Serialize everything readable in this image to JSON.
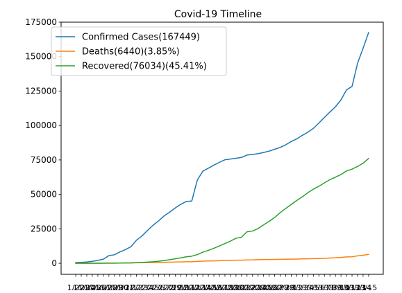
{
  "chart_data": {
    "type": "line",
    "title": "Covid-19 Timeline",
    "xlabel": "",
    "ylabel": "",
    "ylim": [
      -8000,
      175000
    ],
    "yticks": [
      0,
      25000,
      50000,
      75000,
      100000,
      125000,
      150000,
      175000
    ],
    "ytick_labels": [
      "0",
      "25000",
      "50000",
      "75000",
      "100000",
      "125000",
      "150000",
      "175000"
    ],
    "grid": false,
    "legend_position": "upper left",
    "x": [
      "1/22",
      "1/23",
      "1/24",
      "1/25",
      "1/26",
      "1/27",
      "1/28",
      "1/29",
      "1/30",
      "1/31",
      "2/1",
      "2/2",
      "2/3",
      "2/4",
      "2/5",
      "2/6",
      "2/7",
      "2/8",
      "2/9",
      "2/10",
      "2/11",
      "2/12",
      "2/13",
      "2/14",
      "2/15",
      "2/16",
      "2/17",
      "2/18",
      "2/19",
      "2/20",
      "2/21",
      "2/22",
      "2/23",
      "2/24",
      "2/25",
      "2/26",
      "2/27",
      "2/28",
      "2/29",
      "3/1",
      "3/2",
      "3/3",
      "3/4",
      "3/5",
      "3/6",
      "3/7",
      "3/8",
      "3/9",
      "3/10",
      "3/11",
      "3/12",
      "3/13",
      "3/14",
      "3/15"
    ],
    "series": [
      {
        "name": "Confirmed Cases(167449)",
        "color": "#1f77b4",
        "values": [
          555,
          654,
          941,
          1434,
          2118,
          2927,
          5578,
          6166,
          8234,
          9927,
          12038,
          16787,
          19881,
          23892,
          27635,
          30794,
          34391,
          37120,
          40150,
          42762,
          44802,
          45221,
          60368,
          66885,
          69030,
          71224,
          73258,
          75136,
          75639,
          76197,
          76819,
          78572,
          78958,
          79561,
          80406,
          81388,
          82746,
          84112,
          86011,
          88369,
          90306,
          92840,
          95120,
          97886,
          101801,
          105847,
          109821,
          113590,
          118620,
          125875,
          128343,
          145193,
          156099,
          167449
        ]
      },
      {
        "name": "Deaths(6440)(3.85%)",
        "color": "#ff7f0e",
        "values": [
          17,
          18,
          26,
          42,
          56,
          82,
          131,
          133,
          171,
          213,
          259,
          362,
          426,
          492,
          564,
          634,
          719,
          806,
          906,
          1013,
          1113,
          1118,
          1371,
          1523,
          1666,
          1770,
          1868,
          2007,
          2122,
          2247,
          2251,
          2458,
          2469,
          2629,
          2708,
          2770,
          2814,
          2872,
          2941,
          2996,
          3085,
          3160,
          3254,
          3348,
          3460,
          3558,
          3803,
          3996,
          4262,
          4615,
          4720,
          5404,
          5819,
          6440
        ]
      },
      {
        "name": "Recovered(76034)(45.41%)",
        "color": "#2ca02c",
        "values": [
          28,
          30,
          36,
          39,
          52,
          61,
          107,
          126,
          143,
          222,
          284,
          472,
          623,
          852,
          1124,
          1487,
          2011,
          2616,
          3244,
          3946,
          4683,
          5150,
          6295,
          8058,
          9395,
          10865,
          12583,
          14352,
          16121,
          18177,
          18890,
          22886,
          23394,
          25227,
          27905,
          30384,
          33277,
          36711,
          39782,
          42716,
          45602,
          48228,
          51170,
          53796,
          55865,
          58358,
          60694,
          62494,
          64404,
          67003,
          68324,
          70251,
          72624,
          76034
        ]
      }
    ]
  }
}
